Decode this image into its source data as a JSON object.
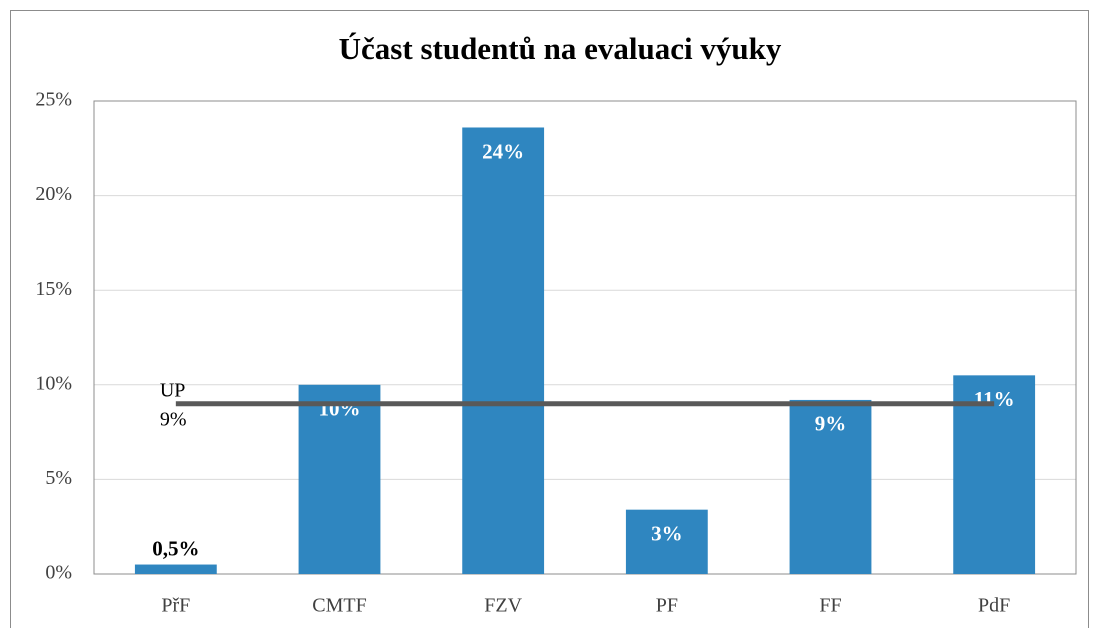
{
  "chart_data": {
    "type": "bar",
    "title": "Účast studentů na evaluaci výuky",
    "categories": [
      "PřF",
      "CMTF",
      "FZV",
      "PF",
      "FF",
      "PdF"
    ],
    "values": [
      0.5,
      10.0,
      23.6,
      3.4,
      9.2,
      10.5
    ],
    "value_labels": [
      "0,5%",
      "10%",
      "24%",
      "3%",
      "9%",
      "11%"
    ],
    "color": "#2f86c0",
    "reference": {
      "name": "UP",
      "value": 9,
      "value_label": "9%",
      "color": "#595959"
    },
    "ylim": [
      0,
      25
    ],
    "yticks": [
      {
        "value": 0,
        "label": "0%"
      },
      {
        "value": 5,
        "label": "5%"
      },
      {
        "value": 10,
        "label": "10%"
      },
      {
        "value": 15,
        "label": "15%"
      },
      {
        "value": 20,
        "label": "20%"
      },
      {
        "value": 25,
        "label": "25%"
      }
    ],
    "grid": true
  }
}
